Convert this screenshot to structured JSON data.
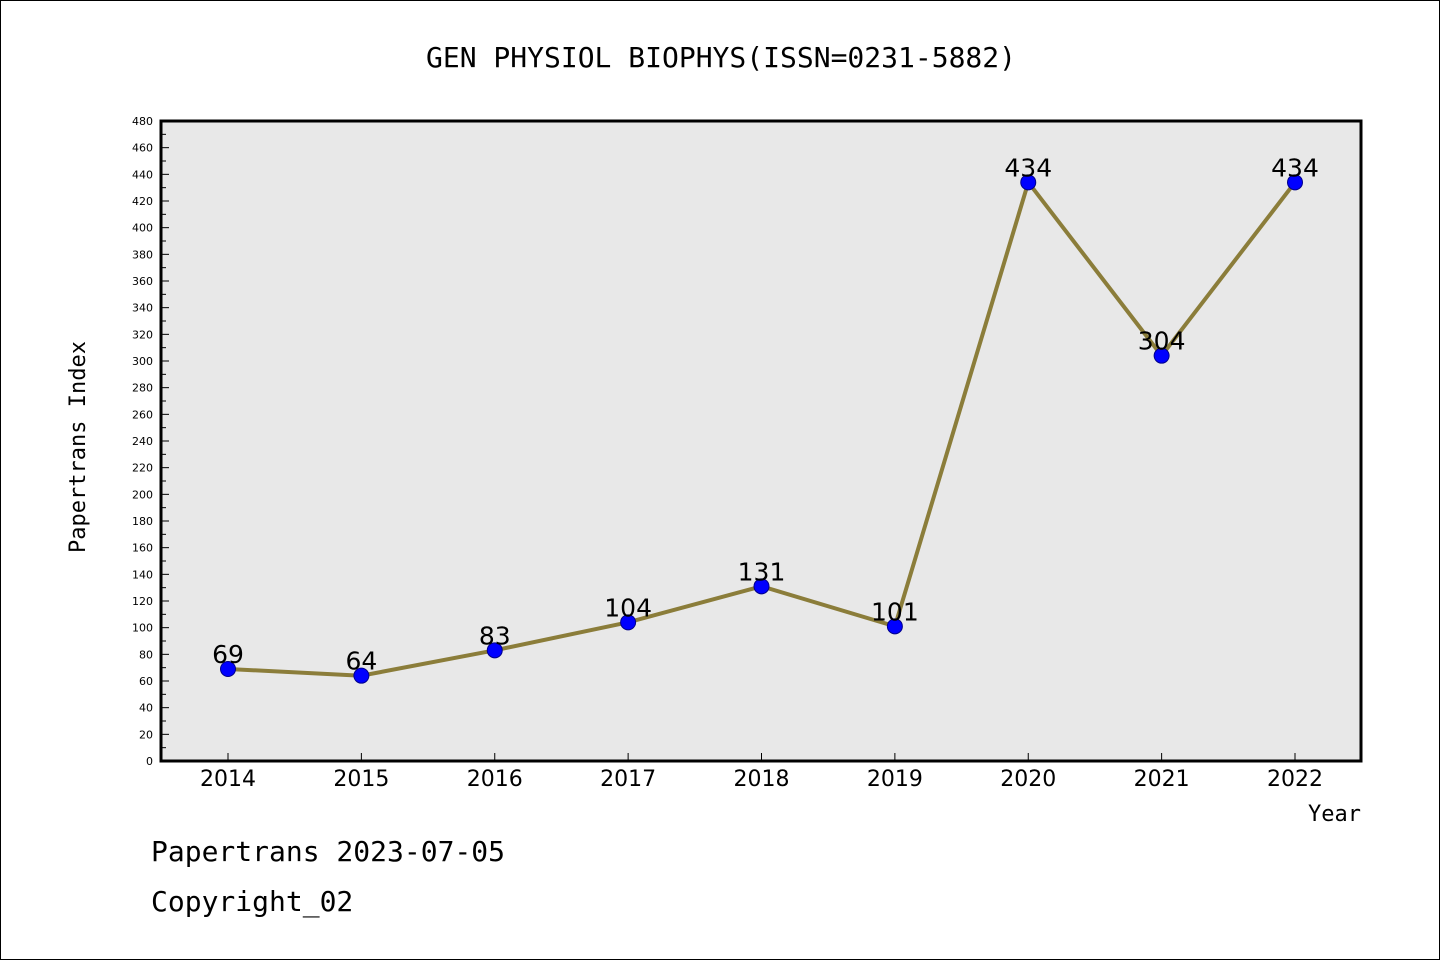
{
  "chart_data": {
    "type": "line",
    "title": "GEN PHYSIOL BIOPHYS(ISSN=0231-5882)",
    "xlabel": "Year",
    "ylabel": "Papertrans Index",
    "categories": [
      "2014",
      "2015",
      "2016",
      "2017",
      "2018",
      "2019",
      "2020",
      "2021",
      "2022"
    ],
    "values": [
      69,
      64,
      83,
      104,
      131,
      101,
      434,
      304,
      434
    ],
    "ylim": [
      0,
      480
    ],
    "ytick_step": 20,
    "grid": false,
    "line_color": "#8b7d3a",
    "marker_color": "#0000ff",
    "plot_background": "#e8e8e8"
  },
  "footer": {
    "line1": "Papertrans 2023-07-05",
    "line2": "Copyright_02"
  }
}
